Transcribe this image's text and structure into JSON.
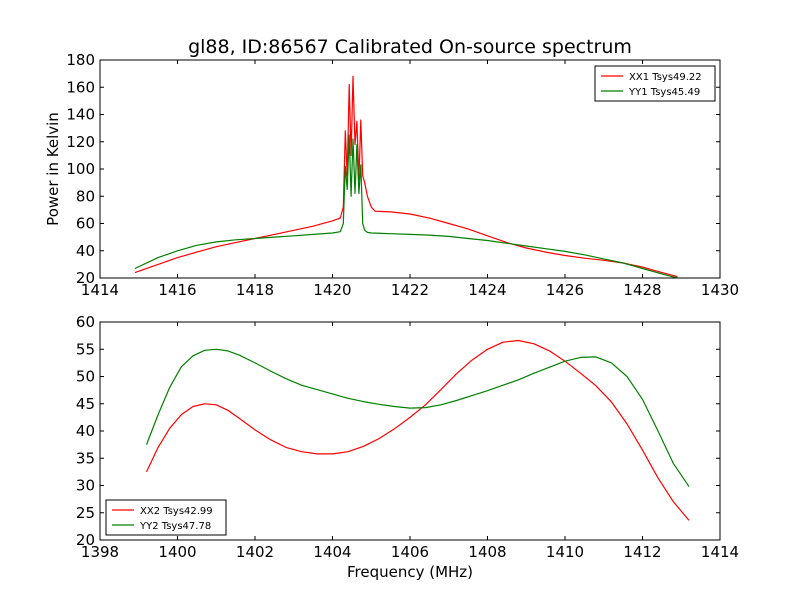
{
  "figure": {
    "title": "gl88, ID:86567 Calibrated On-source spectrum",
    "xlabel": "Frequency (MHz)"
  },
  "chart_data": [
    {
      "type": "line",
      "title": "gl88, ID:86567 Calibrated On-source spectrum",
      "xlabel": "",
      "ylabel": "Power in Kelvin",
      "xlim": [
        1414,
        1430
      ],
      "ylim": [
        20,
        180
      ],
      "xticks": [
        1414,
        1416,
        1418,
        1420,
        1422,
        1424,
        1426,
        1428,
        1430
      ],
      "yticks": [
        20,
        40,
        60,
        80,
        100,
        120,
        140,
        160,
        180
      ],
      "grid": false,
      "legend": "top-right",
      "series": [
        {
          "name": "XX1 Tsys49.22",
          "color": "#ff0000",
          "x": [
            1414.9,
            1415.5,
            1416.0,
            1416.5,
            1417.0,
            1417.5,
            1418.0,
            1418.5,
            1419.0,
            1419.5,
            1420.0,
            1420.2,
            1420.28,
            1420.33,
            1420.38,
            1420.43,
            1420.48,
            1420.53,
            1420.58,
            1420.63,
            1420.68,
            1420.73,
            1420.78,
            1420.83,
            1420.9,
            1421.0,
            1421.1,
            1421.5,
            1422.0,
            1422.5,
            1423.0,
            1423.5,
            1424.0,
            1424.5,
            1425.0,
            1425.5,
            1426.0,
            1426.5,
            1427.0,
            1427.5,
            1428.0,
            1428.5,
            1428.9
          ],
          "y": [
            24,
            30,
            35,
            39,
            43,
            46,
            49,
            52,
            55,
            58,
            62,
            64,
            72,
            128,
            95,
            162,
            110,
            168,
            118,
            135,
            92,
            136,
            95,
            90,
            80,
            72,
            69,
            68.5,
            67,
            64,
            60,
            56,
            51,
            46,
            42,
            39,
            36.5,
            34.5,
            33,
            31,
            28,
            24,
            21
          ]
        },
        {
          "name": "YY1 Tsys45.49",
          "color": "#008000",
          "x": [
            1414.9,
            1415.5,
            1416.0,
            1416.5,
            1417.0,
            1417.5,
            1418.0,
            1418.5,
            1419.0,
            1419.5,
            1420.0,
            1420.2,
            1420.28,
            1420.33,
            1420.38,
            1420.43,
            1420.48,
            1420.53,
            1420.58,
            1420.63,
            1420.68,
            1420.73,
            1420.78,
            1420.83,
            1420.9,
            1421.0,
            1421.5,
            1422.0,
            1422.5,
            1423.0,
            1423.5,
            1424.0,
            1424.5,
            1425.0,
            1425.5,
            1426.0,
            1426.5,
            1427.0,
            1427.5,
            1428.0,
            1428.5,
            1428.9
          ],
          "y": [
            27,
            35,
            40,
            44,
            46.5,
            48,
            49,
            50,
            51,
            52,
            53,
            54,
            60,
            102,
            85,
            125,
            80,
            122,
            82,
            118,
            82,
            103,
            60,
            55,
            53.5,
            53,
            52.5,
            52,
            51.5,
            50.5,
            49,
            47.5,
            45.5,
            43.5,
            41.5,
            39.5,
            37,
            34,
            31,
            27,
            23,
            20
          ]
        }
      ]
    },
    {
      "type": "line",
      "title": "",
      "xlabel": "Frequency (MHz)",
      "ylabel": "",
      "xlim": [
        1398,
        1414
      ],
      "ylim": [
        20,
        60
      ],
      "xticks": [
        1398,
        1400,
        1402,
        1404,
        1406,
        1408,
        1410,
        1412,
        1414
      ],
      "yticks": [
        20,
        25,
        30,
        35,
        40,
        45,
        50,
        55,
        60
      ],
      "grid": false,
      "legend": "bottom-left",
      "series": [
        {
          "name": "XX2 Tsys42.99",
          "color": "#ff0000",
          "x": [
            1399.2,
            1399.5,
            1399.8,
            1400.1,
            1400.4,
            1400.7,
            1401.0,
            1401.3,
            1401.6,
            1402.0,
            1402.4,
            1402.8,
            1403.2,
            1403.6,
            1404.0,
            1404.4,
            1404.8,
            1405.2,
            1405.6,
            1406.0,
            1406.4,
            1406.8,
            1407.2,
            1407.6,
            1408.0,
            1408.4,
            1408.8,
            1409.2,
            1409.6,
            1410.0,
            1410.4,
            1410.8,
            1411.2,
            1411.6,
            1412.0,
            1412.4,
            1412.8,
            1413.2
          ],
          "y": [
            32.5,
            37,
            40.5,
            43,
            44.5,
            45,
            44.8,
            43.8,
            42.3,
            40.2,
            38.4,
            37,
            36.2,
            35.8,
            35.8,
            36.2,
            37.2,
            38.6,
            40.4,
            42.5,
            44.8,
            47.6,
            50.5,
            53,
            55,
            56.3,
            56.6,
            56,
            54.7,
            52.8,
            50.6,
            48.3,
            45.3,
            41.3,
            36.5,
            31.4,
            27,
            23.6
          ]
        },
        {
          "name": "YY2 Tsys47.78",
          "color": "#008000",
          "x": [
            1399.2,
            1399.5,
            1399.8,
            1400.1,
            1400.4,
            1400.7,
            1401.0,
            1401.3,
            1401.6,
            1402.0,
            1402.4,
            1402.8,
            1403.2,
            1403.6,
            1404.0,
            1404.4,
            1404.8,
            1405.2,
            1405.6,
            1406.0,
            1406.4,
            1406.8,
            1407.2,
            1407.6,
            1408.0,
            1408.4,
            1408.8,
            1409.2,
            1409.6,
            1410.0,
            1410.4,
            1410.8,
            1411.2,
            1411.6,
            1412.0,
            1412.4,
            1412.8,
            1413.2
          ],
          "y": [
            37.5,
            43,
            48,
            51.8,
            53.8,
            54.8,
            55,
            54.7,
            53.9,
            52.5,
            51,
            49.6,
            48.4,
            47.6,
            46.8,
            46,
            45.4,
            44.9,
            44.5,
            44.2,
            44.3,
            44.8,
            45.6,
            46.5,
            47.4,
            48.4,
            49.4,
            50.6,
            51.7,
            52.8,
            53.5,
            53.6,
            52.5,
            50,
            45.8,
            40,
            34,
            29.8
          ]
        }
      ]
    }
  ]
}
